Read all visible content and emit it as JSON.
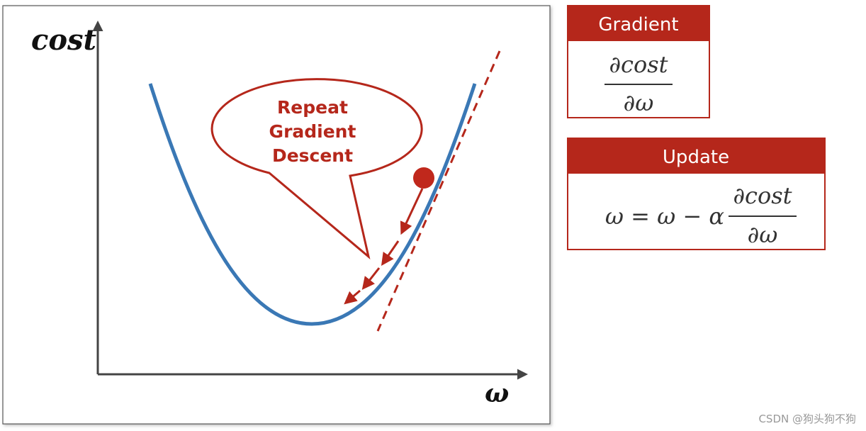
{
  "diagram": {
    "y_axis_label": "cost",
    "x_axis_label": "ω",
    "callout": {
      "lines": [
        "Repeat",
        "Gradient",
        "Descent"
      ]
    }
  },
  "panels": [
    {
      "title": "Gradient",
      "formula": {
        "numerator": "∂cost",
        "denominator": "∂ω"
      }
    },
    {
      "title": "Update",
      "formula": {
        "lhs": "ω = ω − α",
        "numerator": "∂cost",
        "denominator": "∂ω"
      }
    }
  ],
  "watermark": "CSDN @狗头狗不狗"
}
